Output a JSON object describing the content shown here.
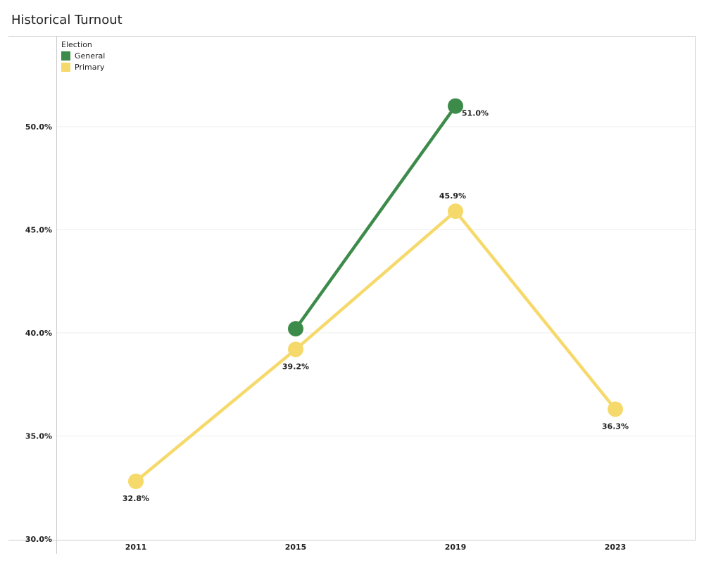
{
  "header": {
    "title": "Historical Turnout"
  },
  "legend": {
    "title": "Election",
    "items": [
      {
        "label": "General",
        "color": "#3d8b4a"
      },
      {
        "label": "Primary",
        "color": "#f6d96b"
      }
    ]
  },
  "chart_data": {
    "type": "line",
    "title": "Historical Turnout",
    "xlabel": "",
    "ylabel": "",
    "categories": [
      "2011",
      "2015",
      "2019",
      "2023"
    ],
    "series": [
      {
        "name": "General",
        "color": "#3d8b4a",
        "values": [
          null,
          40.2,
          51.0,
          null
        ],
        "labels": [
          null,
          null,
          "51.0%",
          null
        ]
      },
      {
        "name": "Primary",
        "color": "#f6d96b",
        "values": [
          32.8,
          39.2,
          45.9,
          36.3
        ],
        "labels": [
          "32.8%",
          "39.2%",
          "45.9%",
          "36.3%"
        ]
      }
    ],
    "yticks": [
      "30.0%",
      "35.0%",
      "40.0%",
      "45.0%",
      "50.0%"
    ],
    "ylim": [
      30,
      54
    ],
    "grid": true,
    "legend_position": "top-left"
  }
}
